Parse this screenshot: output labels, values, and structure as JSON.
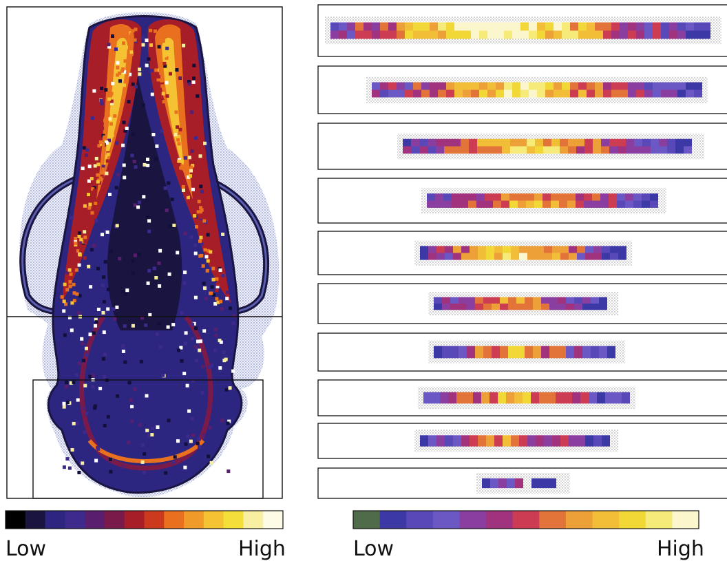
{
  "palette_left": [
    "#000000",
    "#1a1440",
    "#2c2680",
    "#3d2a8c",
    "#5a1e6e",
    "#7a1a4a",
    "#a81e28",
    "#cc3a1e",
    "#e8701e",
    "#f09a2a",
    "#f5c233",
    "#f4df3a",
    "#f8efa0",
    "#fdfbe6"
  ],
  "palette_right": [
    "#4f6b4a",
    "#3c39a6",
    "#5848b8",
    "#6c58c4",
    "#8a3ea0",
    "#a0327e",
    "#cc3c52",
    "#e2743a",
    "#eea038",
    "#f2be38",
    "#f2d836",
    "#f6ea78",
    "#fbf6cc"
  ],
  "left_legend": {
    "low_label": "Low",
    "high_label": "High"
  },
  "right_legend": {
    "low_label": "Low",
    "high_label": "High"
  },
  "strip_count": 10
}
